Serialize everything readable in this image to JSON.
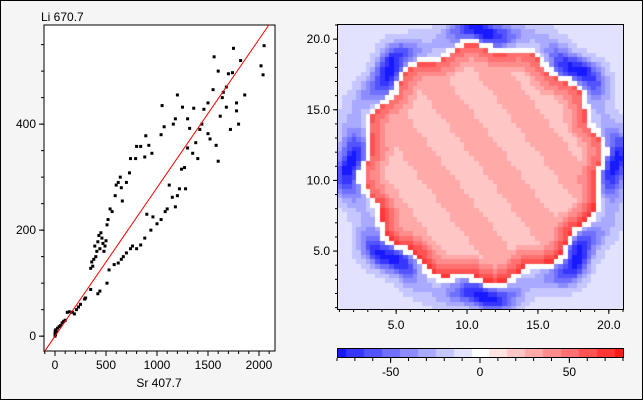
{
  "chart_data": [
    {
      "type": "scatter",
      "ylabel": "Li 670.7",
      "xlabel": "Sr 407.7",
      "xlim": [
        -108,
        2157
      ],
      "ylim": [
        -28,
        587
      ],
      "xticks": [
        0,
        500,
        1000,
        1500,
        2000
      ],
      "yticks": [
        0,
        200,
        400
      ],
      "fit_line": {
        "slope": 0.28,
        "intercept": 0,
        "color": "#ff0000"
      },
      "points": [
        [
          0,
          0
        ],
        [
          0,
          5
        ],
        [
          2,
          10
        ],
        [
          5,
          3
        ],
        [
          8,
          12
        ],
        [
          15,
          8
        ],
        [
          25,
          15
        ],
        [
          40,
          18
        ],
        [
          55,
          20
        ],
        [
          70,
          25
        ],
        [
          85,
          28
        ],
        [
          100,
          30
        ],
        [
          120,
          45
        ],
        [
          140,
          46
        ],
        [
          170,
          45
        ],
        [
          190,
          42
        ],
        [
          210,
          50
        ],
        [
          230,
          55
        ],
        [
          250,
          60
        ],
        [
          290,
          70
        ],
        [
          300,
          72
        ],
        [
          350,
          88
        ],
        [
          420,
          80
        ],
        [
          440,
          85
        ],
        [
          350,
          128
        ],
        [
          360,
          140
        ],
        [
          370,
          132
        ],
        [
          380,
          145
        ],
        [
          390,
          170
        ],
        [
          400,
          150
        ],
        [
          410,
          160
        ],
        [
          420,
          178
        ],
        [
          430,
          190
        ],
        [
          440,
          165
        ],
        [
          450,
          195
        ],
        [
          460,
          185
        ],
        [
          470,
          175
        ],
        [
          480,
          160
        ],
        [
          490,
          170
        ],
        [
          500,
          180
        ],
        [
          510,
          210
        ],
        [
          520,
          220
        ],
        [
          540,
          240
        ],
        [
          560,
          235
        ],
        [
          590,
          265
        ],
        [
          600,
          285
        ],
        [
          620,
          290
        ],
        [
          640,
          300
        ],
        [
          650,
          280
        ],
        [
          660,
          255
        ],
        [
          700,
          290
        ],
        [
          730,
          308
        ],
        [
          740,
          335
        ],
        [
          790,
          335
        ],
        [
          800,
          358
        ],
        [
          840,
          358
        ],
        [
          880,
          338
        ],
        [
          890,
          378
        ],
        [
          920,
          360
        ],
        [
          950,
          345
        ],
        [
          1040,
          380
        ],
        [
          1050,
          435
        ],
        [
          1070,
          395
        ],
        [
          1200,
          455
        ],
        [
          1250,
          432
        ],
        [
          510,
          100
        ],
        [
          530,
          125
        ],
        [
          580,
          135
        ],
        [
          620,
          138
        ],
        [
          650,
          145
        ],
        [
          670,
          150
        ],
        [
          700,
          157
        ],
        [
          740,
          165
        ],
        [
          760,
          170
        ],
        [
          800,
          165
        ],
        [
          840,
          172
        ],
        [
          880,
          185
        ],
        [
          900,
          230
        ],
        [
          940,
          200
        ],
        [
          960,
          225
        ],
        [
          1000,
          212
        ],
        [
          1040,
          220
        ],
        [
          1080,
          235
        ],
        [
          1100,
          240
        ],
        [
          1120,
          285
        ],
        [
          1150,
          262
        ],
        [
          1180,
          244
        ],
        [
          1200,
          265
        ],
        [
          1220,
          278
        ],
        [
          1240,
          315
        ],
        [
          1270,
          318
        ],
        [
          1280,
          278
        ],
        [
          1300,
          355
        ],
        [
          1320,
          392
        ],
        [
          1350,
          345
        ],
        [
          1380,
          365
        ],
        [
          1400,
          335
        ],
        [
          1420,
          390
        ],
        [
          1440,
          400
        ],
        [
          1460,
          428
        ],
        [
          1500,
          440
        ],
        [
          1500,
          382
        ],
        [
          1520,
          372
        ],
        [
          1550,
          465
        ],
        [
          1580,
          360
        ],
        [
          1600,
          330
        ],
        [
          1620,
          415
        ],
        [
          1650,
          460
        ],
        [
          1680,
          470
        ],
        [
          1700,
          495
        ],
        [
          1720,
          390
        ],
        [
          1750,
          543
        ],
        [
          1780,
          440
        ],
        [
          1800,
          400
        ],
        [
          1820,
          520
        ],
        [
          1860,
          455
        ],
        [
          2020,
          510
        ],
        [
          2040,
          493
        ],
        [
          2050,
          548
        ],
        [
          1560,
          527
        ],
        [
          1600,
          500
        ],
        [
          1640,
          450
        ],
        [
          1680,
          432
        ],
        [
          1740,
          497
        ],
        [
          1780,
          425
        ],
        [
          1300,
          410
        ],
        [
          1360,
          430
        ],
        [
          1180,
          410
        ],
        [
          1160,
          400
        ]
      ]
    },
    {
      "type": "heatmap",
      "xlim": [
        0.9,
        21
      ],
      "ylim": [
        0.9,
        21
      ],
      "xticks": [
        "5.0",
        "10.0",
        "15.0",
        "20.0"
      ],
      "yticks": [
        "5.0",
        "10.0",
        "15.0",
        "20.0"
      ],
      "model": {
        "center": [
          11,
          11.3
        ],
        "ring_radius": 8.2,
        "inner_value": 25,
        "edge_value": 70,
        "outer_value": -70
      },
      "colorbar": {
        "range": [
          -80,
          80
        ],
        "ticks": [
          "-50",
          "0",
          "50"
        ],
        "tick_values": [
          -50,
          0,
          50
        ],
        "low_color": "#1a1aff",
        "high_color": "#ff1a1a"
      }
    }
  ]
}
